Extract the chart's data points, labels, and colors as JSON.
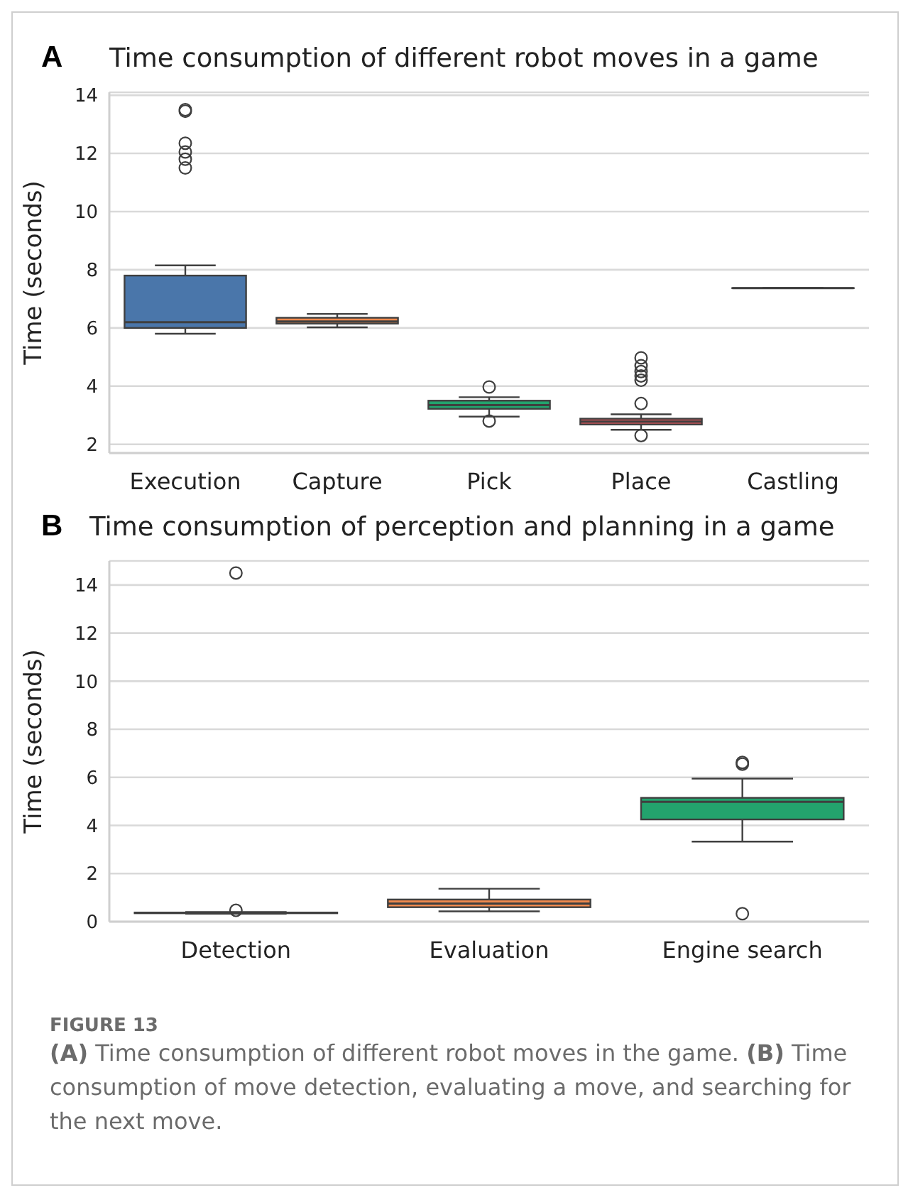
{
  "chart_data": [
    {
      "type": "box",
      "title": "Time consumption of different robot moves in a game",
      "ylabel": "Time (seconds)",
      "annotations": [
        "A"
      ],
      "categories": [
        "Execution",
        "Capture",
        "Pick",
        "Place",
        "Castling"
      ],
      "colors": [
        "#4a76aa",
        "#f0894e",
        "#23a36d",
        "#d2555a",
        "#8c6bb1"
      ],
      "boxes": [
        {
          "low": 5.8,
          "q1": 6.0,
          "median": 6.2,
          "q3": 7.8,
          "high": 8.15,
          "outliers": [
            11.5,
            11.8,
            12.05,
            12.35,
            13.45,
            13.5
          ]
        },
        {
          "low": 6.02,
          "q1": 6.15,
          "median": 6.22,
          "q3": 6.35,
          "high": 6.48
        },
        {
          "low": 2.95,
          "q1": 3.22,
          "median": 3.35,
          "q3": 3.5,
          "high": 3.62,
          "outliers": [
            2.8,
            3.97
          ]
        },
        {
          "low": 2.5,
          "q1": 2.68,
          "median": 2.78,
          "q3": 2.88,
          "high": 3.03,
          "outliers": [
            2.3,
            3.4,
            4.2,
            4.35,
            4.5,
            4.7,
            4.97
          ]
        },
        {
          "low": 7.37,
          "q1": 7.37,
          "median": 7.37,
          "q3": 7.37,
          "high": 7.37
        }
      ],
      "ylim": [
        1.7,
        14.1
      ],
      "yticks": [
        2,
        4,
        6,
        8,
        10,
        12,
        14
      ],
      "grid": "y"
    },
    {
      "type": "box",
      "title": "Time consumption of perception and planning in a game",
      "ylabel": "Time (seconds)",
      "annotations": [
        "B",
        "FIGURE 13",
        "(A) Time consumption of different robot moves in the game. (B) Time consumption of move detection, evaluating a move, and searching for the next move."
      ],
      "categories": [
        "Detection",
        "Evaluation",
        "Engine search"
      ],
      "colors": [
        "#4a76aa",
        "#f0894e",
        "#23a36d"
      ],
      "boxes": [
        {
          "low": 0.33,
          "q1": 0.35,
          "median": 0.37,
          "q3": 0.38,
          "high": 0.4,
          "outliers": [
            0.47,
            14.5
          ]
        },
        {
          "low": 0.43,
          "q1": 0.6,
          "median": 0.75,
          "q3": 0.92,
          "high": 1.37
        },
        {
          "low": 3.33,
          "q1": 4.25,
          "median": 4.98,
          "q3": 5.15,
          "high": 5.95,
          "outliers": [
            0.33,
            6.55,
            6.62
          ]
        }
      ],
      "ylim": [
        0,
        15
      ],
      "yticks": [
        0,
        2,
        4,
        6,
        8,
        10,
        12,
        14
      ],
      "grid": "y"
    }
  ]
}
